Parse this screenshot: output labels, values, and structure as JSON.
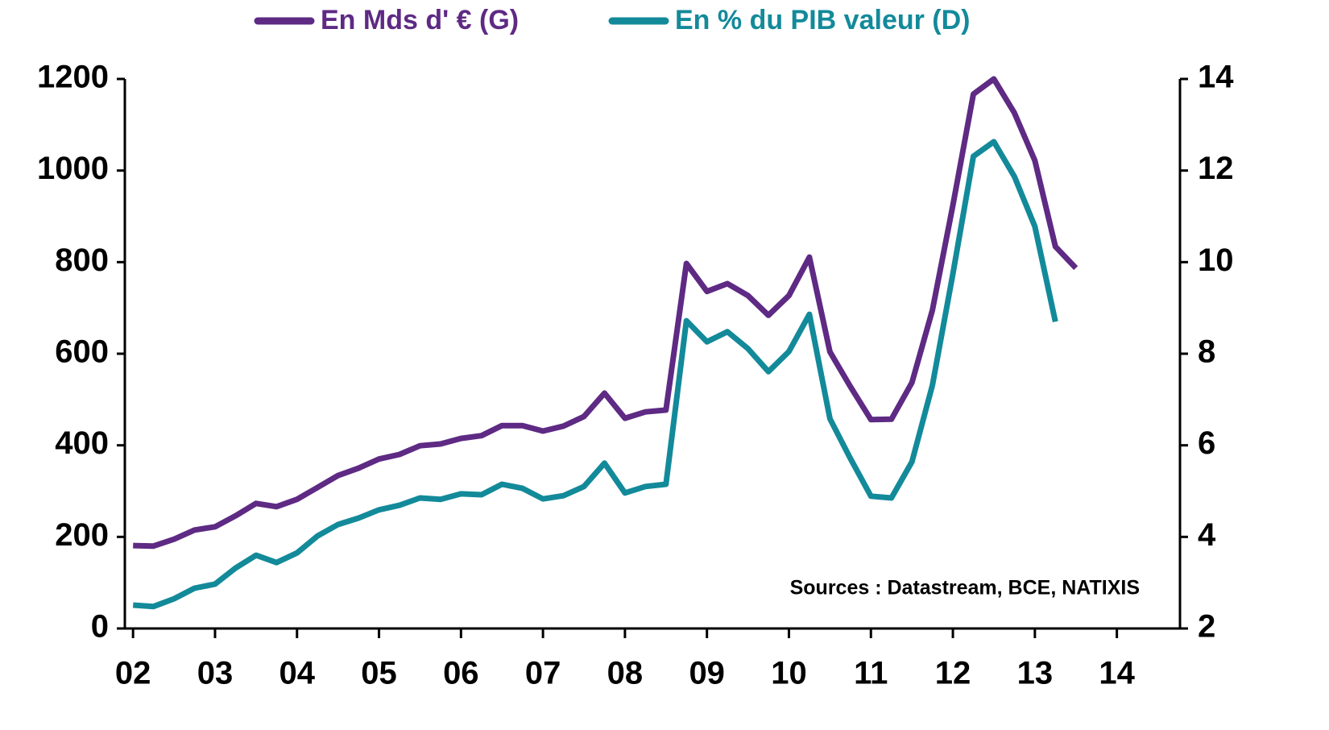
{
  "chart_data": {
    "type": "line",
    "x": [
      2002,
      2002.25,
      2002.5,
      2002.75,
      2003,
      2003.25,
      2003.5,
      2003.75,
      2004,
      2004.25,
      2004.5,
      2004.75,
      2005,
      2005.25,
      2005.5,
      2005.75,
      2006,
      2006.25,
      2006.5,
      2006.75,
      2007,
      2007.25,
      2007.5,
      2007.75,
      2008,
      2008.25,
      2008.5,
      2008.75,
      2009,
      2009.25,
      2009.5,
      2009.75,
      2010,
      2010.25,
      2010.5,
      2010.75,
      2011,
      2011.25,
      2011.5,
      2011.75,
      2012,
      2012.25,
      2012.5,
      2012.75,
      2013,
      2013.25,
      2013.5
    ],
    "series": [
      {
        "name": "En Mds d' € (G)",
        "color": "#5e2a84",
        "axis": "y",
        "values": [
          181,
          180,
          195,
          215,
          222,
          246,
          273,
          266,
          282,
          308,
          334,
          350,
          370,
          380,
          399,
          403,
          415,
          421,
          443,
          443,
          431,
          442,
          463,
          514,
          459,
          473,
          477,
          797,
          736,
          753,
          727,
          684,
          727,
          811,
          604,
          528,
          456,
          457,
          537,
          695,
          924,
          1167,
          1200,
          1126,
          1022,
          834,
          787
        ]
      },
      {
        "name": "En % du PIB valeur (D)",
        "color": "#138a9a",
        "axis": "y2",
        "values": [
          2.51,
          2.48,
          2.65,
          2.88,
          2.97,
          3.32,
          3.6,
          3.44,
          3.65,
          4.02,
          4.27,
          4.41,
          4.59,
          4.69,
          4.85,
          4.82,
          4.94,
          4.92,
          5.15,
          5.06,
          4.83,
          4.9,
          5.1,
          5.61,
          4.96,
          5.1,
          5.15,
          8.72,
          8.26,
          8.48,
          8.11,
          7.61,
          8.05,
          8.86,
          6.58,
          5.71,
          4.89,
          4.85,
          5.64,
          7.31,
          9.74,
          12.31,
          12.63,
          11.87,
          10.78,
          8.7,
          null
        ]
      }
    ],
    "xlim": [
      2001.9,
      2014.77
    ],
    "xticks": [
      {
        "value": 2002,
        "label": "02"
      },
      {
        "value": 2003,
        "label": "03"
      },
      {
        "value": 2004,
        "label": "04"
      },
      {
        "value": 2005,
        "label": "05"
      },
      {
        "value": 2006,
        "label": "06"
      },
      {
        "value": 2007,
        "label": "07"
      },
      {
        "value": 2008,
        "label": "08"
      },
      {
        "value": 2009,
        "label": "09"
      },
      {
        "value": 2010,
        "label": "10"
      },
      {
        "value": 2011,
        "label": "11"
      },
      {
        "value": 2012,
        "label": "12"
      },
      {
        "value": 2013,
        "label": "13"
      },
      {
        "value": 2014,
        "label": "14"
      }
    ],
    "ylim": [
      0,
      1200
    ],
    "yticks": [
      0,
      200,
      400,
      600,
      800,
      1000,
      1200
    ],
    "y2lim": [
      2,
      14
    ],
    "y2ticks": [
      2,
      4,
      6,
      8,
      10,
      12,
      14
    ],
    "annotation": "Sources : Datastream, BCE, NATIXIS"
  }
}
